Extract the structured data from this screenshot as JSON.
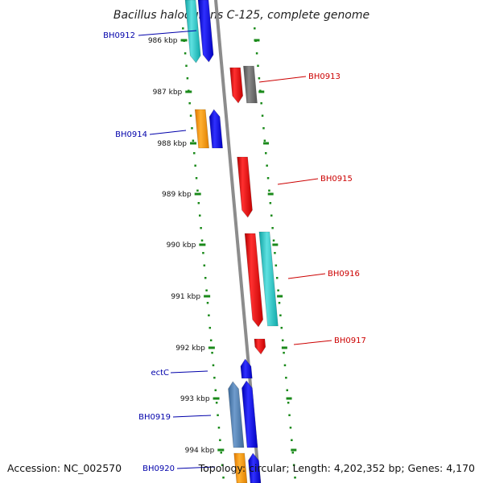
{
  "title": "Bacillus halodurans C-125, complete genome",
  "footer": {
    "accession": "Accession: NC_002570",
    "summary": "Topology: circular; Length: 4,202,352 bp; Genes: 4,170"
  },
  "ticks": [
    "986 kbp",
    "987 kbp",
    "988 kbp",
    "989 kbp",
    "990 kbp",
    "991 kbp",
    "992 kbp",
    "993 kbp",
    "994 kbp"
  ],
  "gene_labels": [
    {
      "id": "BH0912",
      "strand": "reverse"
    },
    {
      "id": "BH0913",
      "strand": "forward"
    },
    {
      "id": "BH0914",
      "strand": "reverse"
    },
    {
      "id": "BH0915",
      "strand": "forward"
    },
    {
      "id": "BH0916",
      "strand": "forward"
    },
    {
      "id": "BH0917",
      "strand": "forward"
    },
    {
      "id": "ectC",
      "strand": "reverse"
    },
    {
      "id": "BH0919",
      "strand": "reverse"
    },
    {
      "id": "BH0920",
      "strand": "reverse"
    }
  ],
  "colors": {
    "forward_label": "#cc0000",
    "reverse_label": "#0000aa",
    "red": "#e60000",
    "gray": "#6b6b6b",
    "cyan": "#1ec7c7",
    "blue": "#0000ee",
    "orange": "#ff9900",
    "steelblue": "#4f7fb3",
    "tick_green": "#1a8a1a",
    "backbone": "#888888"
  }
}
